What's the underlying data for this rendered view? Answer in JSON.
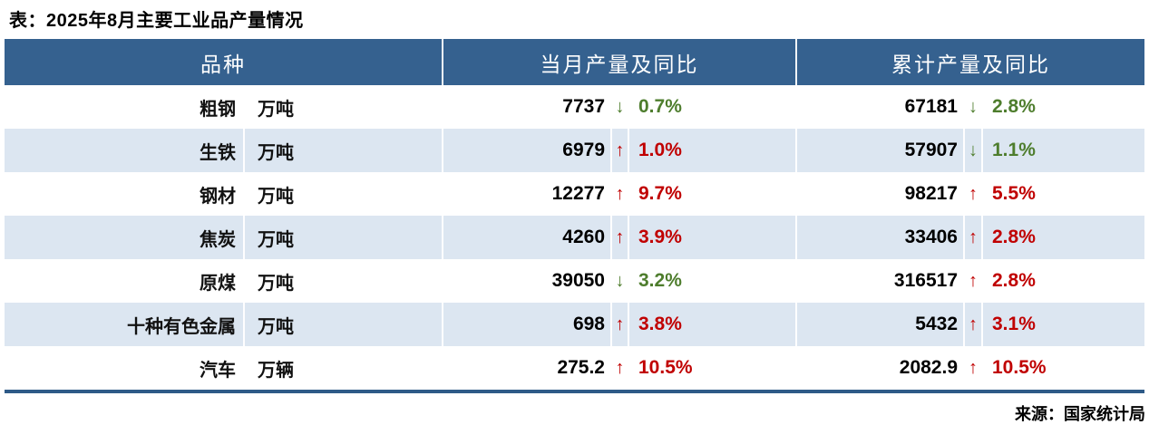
{
  "chart_data": {
    "type": "table",
    "title": "表：2025年8月主要工业品产量情况",
    "source": "来源：国家统计局",
    "columns": [
      {
        "key": "variety",
        "label": "品种"
      },
      {
        "key": "month",
        "label": "当月产量及同比"
      },
      {
        "key": "cumulative",
        "label": "累计产量及同比"
      }
    ],
    "rows": [
      {
        "name": "粗钢",
        "unit": "万吨",
        "month": {
          "value": "7737",
          "direction": "down",
          "pct": "0.7%"
        },
        "cumulative": {
          "value": "67181",
          "direction": "down",
          "pct": "2.8%"
        }
      },
      {
        "name": "生铁",
        "unit": "万吨",
        "month": {
          "value": "6979",
          "direction": "up",
          "pct": "1.0%"
        },
        "cumulative": {
          "value": "57907",
          "direction": "down",
          "pct": "1.1%"
        }
      },
      {
        "name": "钢材",
        "unit": "万吨",
        "month": {
          "value": "12277",
          "direction": "up",
          "pct": "9.7%"
        },
        "cumulative": {
          "value": "98217",
          "direction": "up",
          "pct": "5.5%"
        }
      },
      {
        "name": "焦炭",
        "unit": "万吨",
        "month": {
          "value": "4260",
          "direction": "up",
          "pct": "3.9%"
        },
        "cumulative": {
          "value": "33406",
          "direction": "up",
          "pct": "2.8%"
        }
      },
      {
        "name": "原煤",
        "unit": "万吨",
        "month": {
          "value": "39050",
          "direction": "down",
          "pct": "3.2%"
        },
        "cumulative": {
          "value": "316517",
          "direction": "up",
          "pct": "2.8%"
        }
      },
      {
        "name": "十种有色金属",
        "unit": "万吨",
        "month": {
          "value": "698",
          "direction": "up",
          "pct": "3.8%"
        },
        "cumulative": {
          "value": "5432",
          "direction": "up",
          "pct": "3.1%"
        }
      },
      {
        "name": "汽车",
        "unit": "万辆",
        "month": {
          "value": "275.2",
          "direction": "up",
          "pct": "10.5%"
        },
        "cumulative": {
          "value": "2082.9",
          "direction": "up",
          "pct": "10.5%"
        }
      }
    ]
  },
  "icons": {
    "up_arrow": "↑",
    "down_arrow": "↓"
  },
  "colors": {
    "header_bg": "#35618F",
    "header_text": "#FFFFFF",
    "alt_row_bg": "#DCE6F1",
    "table_bottom_border": "#2E5A87",
    "up": "#C00000",
    "down": "#4E7D2D"
  }
}
